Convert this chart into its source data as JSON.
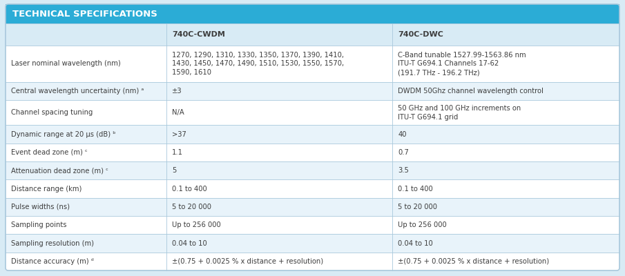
{
  "title": "TECHNICAL SPECIFICATIONS",
  "title_bg": "#2BACD6",
  "title_color": "#FFFFFF",
  "outer_bg": "#D8EBF5",
  "header_bg": "#D8EBF5",
  "row_alt_bg": "#E8F3FA",
  "row_white_bg": "#FFFFFF",
  "col_headers": [
    "",
    "740C-CWDM",
    "740C-DWC"
  ],
  "rows": [
    {
      "label": "Laser nominal wavelength (nm)",
      "cwdm": "1270, 1290, 1310, 1330, 1350, 1370, 1390, 1410,\n1430, 1450, 1470, 1490, 1510, 1530, 1550, 1570,\n1590, 1610",
      "dwc": "C-Band tunable 1527.99-1563.86 nm\nITU-T G694.1 Channels 17-62\n(191.7 THz - 196.2 THz)",
      "multiline": true
    },
    {
      "label": "Central wavelength uncertainty (nm) ᵃ",
      "cwdm": "±3",
      "dwc": "DWDM 50Ghz channel wavelength control",
      "multiline": false
    },
    {
      "label": "Channel spacing tuning",
      "cwdm": "N/A",
      "dwc": "50 GHz and 100 GHz increments on\nITU-T G694.1 grid",
      "multiline": true
    },
    {
      "label": "Dynamic range at 20 μs (dB) ᵇ",
      "cwdm": ">37",
      "dwc": "40",
      "multiline": false
    },
    {
      "label": "Event dead zone (m) ᶜ",
      "cwdm": "1.1",
      "dwc": "0.7",
      "multiline": false
    },
    {
      "label": "Attenuation dead zone (m) ᶜ",
      "cwdm": "5",
      "dwc": "3.5",
      "multiline": false
    },
    {
      "label": "Distance range (km)",
      "cwdm": "0.1 to 400",
      "dwc": "0.1 to 400",
      "multiline": false
    },
    {
      "label": "Pulse widths (ns)",
      "cwdm": "5 to 20 000",
      "dwc": "5 to 20 000",
      "multiline": false
    },
    {
      "label": "Sampling points",
      "cwdm": "Up to 256 000",
      "dwc": "Up to 256 000",
      "multiline": false
    },
    {
      "label": "Sampling resolution (m)",
      "cwdm": "0.04 to 10",
      "dwc": "0.04 to 10",
      "multiline": false
    },
    {
      "label": "Distance accuracy (m) ᵈ",
      "cwdm": "±(0.75 + 0.0025 % x distance + resolution)",
      "dwc": "±(0.75 + 0.0025 % x distance + resolution)",
      "multiline": false
    }
  ],
  "text_color": "#3D3D3D",
  "border_color": "#A8C8DC",
  "font_size": 7.2,
  "header_font_size": 8.0,
  "title_font_size": 9.5
}
